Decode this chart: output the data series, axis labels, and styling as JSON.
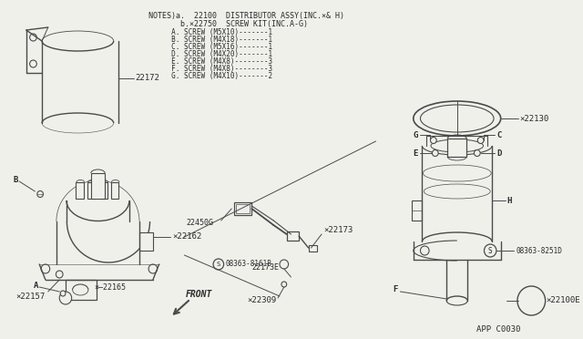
{
  "bg_color": "#f0f0eb",
  "line_color": "#4a4a4a",
  "text_color": "#2a2a2a",
  "notes_line1": "NOTES)a.  22100  DISTRIBUTOR ASSY(INC.×& H)",
  "notes_line2": "       b.×22750  SCREW KIT(INC.A-G)",
  "notes_lines": [
    "     A. SCREW (M5X10)-------1",
    "     B. SCREW (M4X18)-------1",
    "     C. SCREW (M5X16)-------1",
    "     D. SCREW (M4X20)-------1",
    "     E. SCREW (M4X8)--------3",
    "     F. SCREW (M4X8)--------3",
    "     G. SCREW (M4X10)-------2"
  ],
  "diagram_ref": "APP C0030"
}
